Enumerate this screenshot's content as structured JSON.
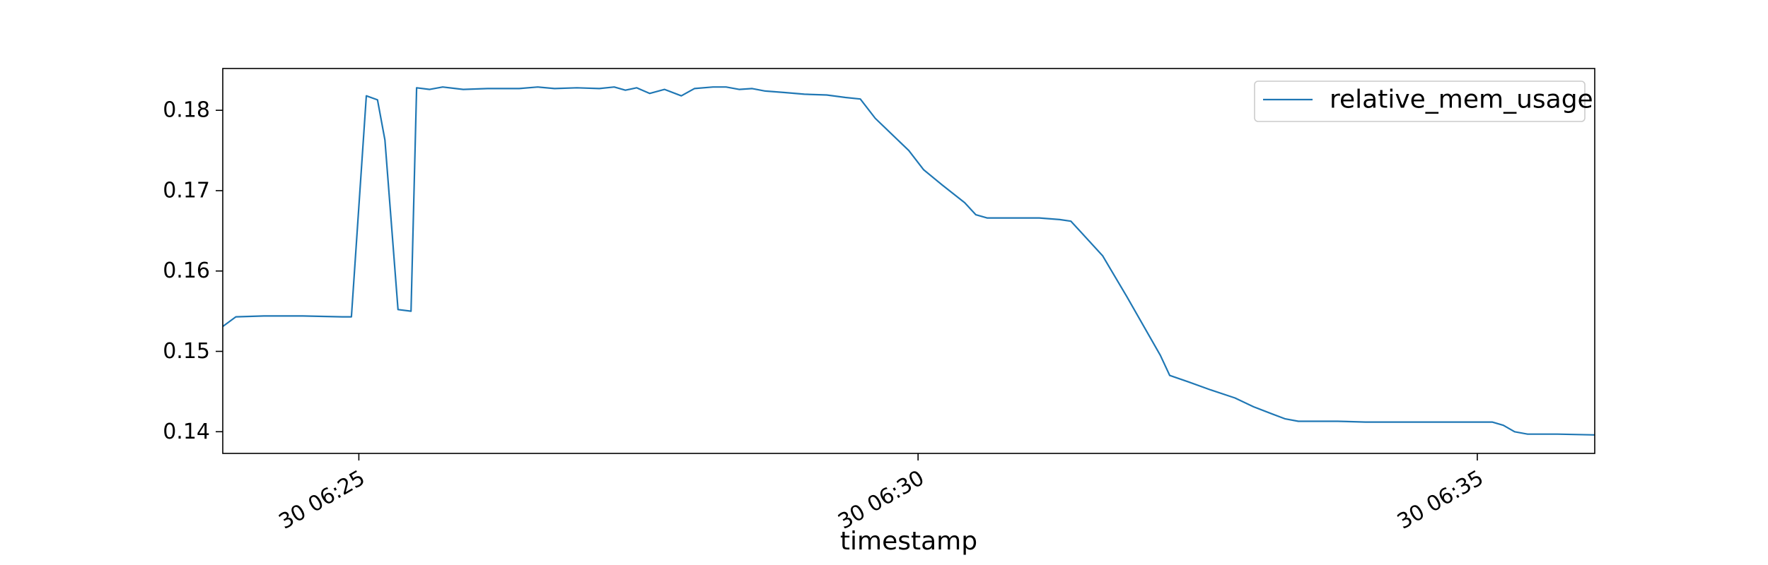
{
  "chart_data": {
    "type": "line",
    "title": "",
    "xlabel": "timestamp",
    "ylabel": "",
    "x_ticks": [
      {
        "t": "06:25:00",
        "label": "30 06:25"
      },
      {
        "t": "06:30:00",
        "label": "30 06:30"
      },
      {
        "t": "06:35:00",
        "label": "30 06:35"
      }
    ],
    "y_ticks": [
      0.14,
      0.15,
      0.16,
      0.17,
      0.18
    ],
    "xlim": [
      "06:23:47",
      "06:36:03"
    ],
    "ylim": [
      0.1373,
      0.1852
    ],
    "grid": false,
    "legend": {
      "placement": "top-right"
    },
    "series": [
      {
        "name": "relative_mem_usage",
        "color": "#1f77b4",
        "points": [
          [
            "06:23:47",
            0.1531
          ],
          [
            "06:23:54",
            0.1543
          ],
          [
            "06:24:09",
            0.1544
          ],
          [
            "06:24:30",
            0.1544
          ],
          [
            "06:24:51",
            0.1543
          ],
          [
            "06:24:52",
            0.1543
          ],
          [
            "06:24:56",
            0.1543
          ],
          [
            "06:25:04",
            0.1818
          ],
          [
            "06:25:10",
            0.1813
          ],
          [
            "06:25:14",
            0.1763
          ],
          [
            "06:25:21",
            0.1552
          ],
          [
            "06:25:28",
            0.155
          ],
          [
            "06:25:31",
            0.1828
          ],
          [
            "06:25:38",
            0.1826
          ],
          [
            "06:25:45",
            0.1829
          ],
          [
            "06:25:56",
            0.1826
          ],
          [
            "06:26:09",
            0.1827
          ],
          [
            "06:26:26",
            0.1827
          ],
          [
            "06:26:36",
            0.1829
          ],
          [
            "06:26:45",
            0.1827
          ],
          [
            "06:26:57",
            0.1828
          ],
          [
            "06:27:09",
            0.1827
          ],
          [
            "06:27:17",
            0.1829
          ],
          [
            "06:27:23",
            0.1825
          ],
          [
            "06:27:29",
            0.1828
          ],
          [
            "06:27:36",
            0.1821
          ],
          [
            "06:27:44",
            0.1826
          ],
          [
            "06:27:53",
            0.1818
          ],
          [
            "06:28:00",
            0.1827
          ],
          [
            "06:28:10",
            0.1829
          ],
          [
            "06:28:17",
            0.1829
          ],
          [
            "06:28:24",
            0.1826
          ],
          [
            "06:28:31",
            0.1827
          ],
          [
            "06:28:38",
            0.1824
          ],
          [
            "06:28:49",
            0.1822
          ],
          [
            "06:28:59",
            0.182
          ],
          [
            "06:29:11",
            0.1819
          ],
          [
            "06:29:21",
            0.1816
          ],
          [
            "06:29:29",
            0.1814
          ],
          [
            "06:29:37",
            0.179
          ],
          [
            "06:29:46",
            0.177
          ],
          [
            "06:29:55",
            0.175
          ],
          [
            "06:30:03",
            0.1726
          ],
          [
            "06:30:13",
            0.1707
          ],
          [
            "06:30:25",
            0.1685
          ],
          [
            "06:30:31",
            0.167
          ],
          [
            "06:30:37",
            0.1666
          ],
          [
            "06:30:48",
            0.1666
          ],
          [
            "06:31:05",
            0.1666
          ],
          [
            "06:31:16",
            0.1664
          ],
          [
            "06:31:22",
            0.1662
          ],
          [
            "06:31:39",
            0.1619
          ],
          [
            "06:31:52",
            0.1568
          ],
          [
            "06:32:10",
            0.1495
          ],
          [
            "06:32:15",
            0.147
          ],
          [
            "06:32:25",
            0.1462
          ],
          [
            "06:32:37",
            0.1452
          ],
          [
            "06:32:50",
            0.1442
          ],
          [
            "06:33:00",
            0.1431
          ],
          [
            "06:33:10",
            0.1422
          ],
          [
            "06:33:17",
            0.1416
          ],
          [
            "06:33:24",
            0.1413
          ],
          [
            "06:33:34",
            0.1413
          ],
          [
            "06:33:45",
            0.1413
          ],
          [
            "06:34:00",
            0.1412
          ],
          [
            "06:34:20",
            0.1412
          ],
          [
            "06:34:44",
            0.1412
          ],
          [
            "06:35:08",
            0.1412
          ],
          [
            "06:35:14",
            0.1408
          ],
          [
            "06:35:20",
            0.14
          ],
          [
            "06:35:27",
            0.1397
          ],
          [
            "06:35:43",
            0.1397
          ],
          [
            "06:36:03",
            0.1396
          ]
        ]
      }
    ]
  }
}
